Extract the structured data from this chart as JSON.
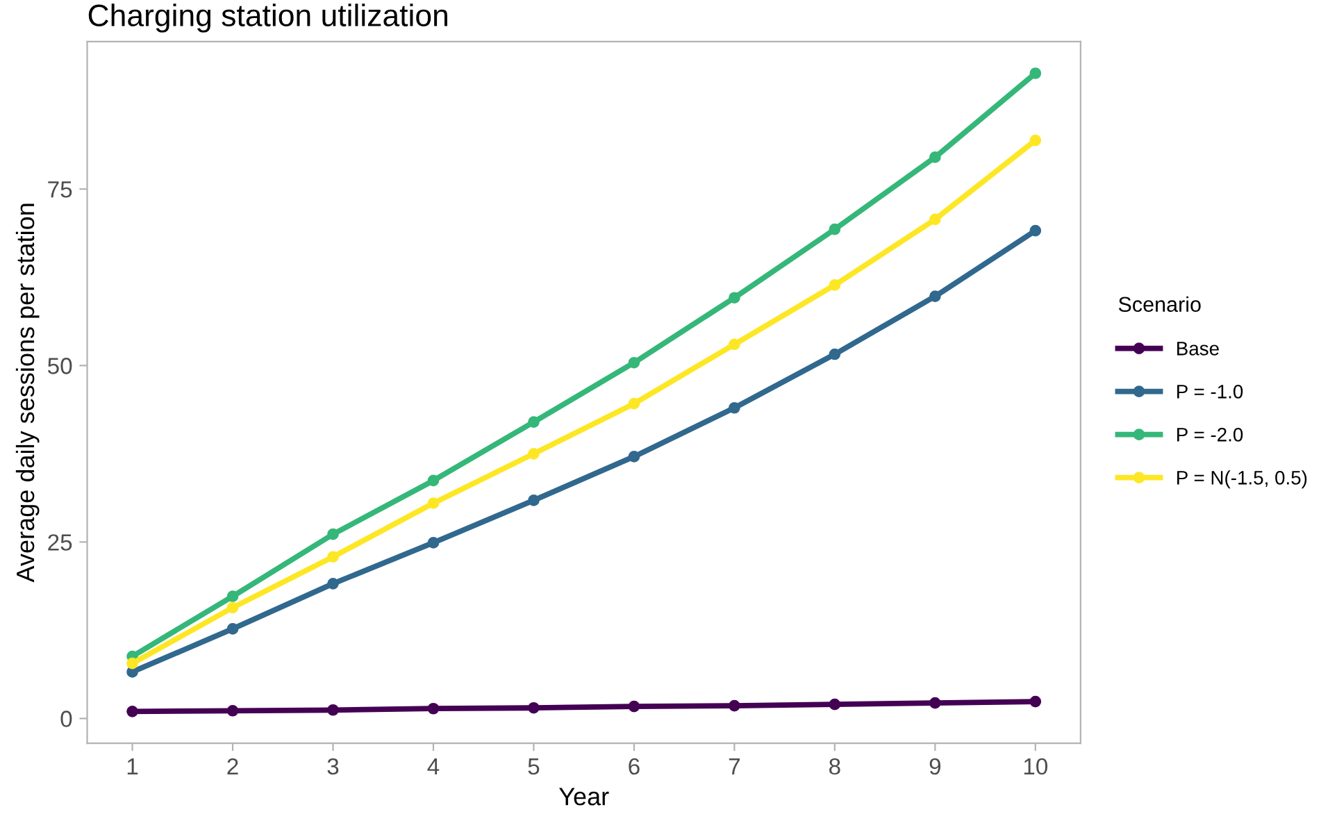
{
  "chart_data": {
    "type": "line",
    "title": "Charging station utilization",
    "xlabel": "Year",
    "ylabel": "Average daily sessions per station",
    "legend_title": "Scenario",
    "x": [
      1,
      2,
      3,
      4,
      5,
      6,
      7,
      8,
      9,
      10
    ],
    "series": [
      {
        "name": "Base",
        "color": "#440154",
        "values": [
          1.0,
          1.1,
          1.2,
          1.4,
          1.5,
          1.7,
          1.8,
          2.0,
          2.2,
          2.4
        ]
      },
      {
        "name": "P = -1.0",
        "color": "#31688e",
        "values": [
          6.6,
          12.7,
          19.1,
          24.9,
          30.9,
          37.1,
          44.0,
          51.6,
          59.8,
          69.1
        ]
      },
      {
        "name": "P = -2.0",
        "color": "#35b779",
        "values": [
          8.8,
          17.3,
          26.1,
          33.7,
          42.0,
          50.4,
          59.6,
          69.3,
          79.5,
          91.4
        ]
      },
      {
        "name": "P = N(-1.5, 0.5)",
        "color": "#fde725",
        "values": [
          7.8,
          15.7,
          22.9,
          30.5,
          37.5,
          44.6,
          53.0,
          61.4,
          70.7,
          81.9
        ]
      }
    ],
    "xlim": [
      0.55,
      10.45
    ],
    "xticks": [
      1,
      2,
      3,
      4,
      5,
      6,
      7,
      8,
      9,
      10
    ],
    "ylim": [
      -3.5,
      95.9
    ],
    "yticks": [
      0,
      25,
      50,
      75
    ],
    "grid": false,
    "legend": "right",
    "marker": "circle",
    "line_style": "solid"
  }
}
